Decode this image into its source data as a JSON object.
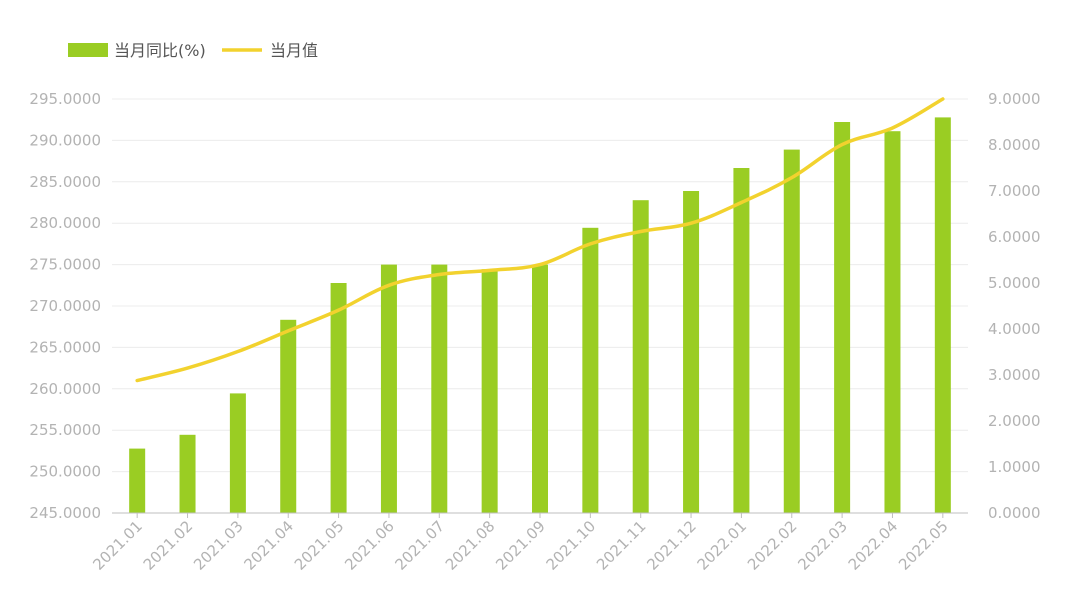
{
  "chart_data": {
    "type": "bar+line",
    "categories": [
      "2021.01",
      "2021.02",
      "2021.03",
      "2021.04",
      "2021.05",
      "2021.06",
      "2021.07",
      "2021.08",
      "2021.09",
      "2021.10",
      "2021.11",
      "2021.12",
      "2022.01",
      "2022.02",
      "2022.03",
      "2022.04",
      "2022.05"
    ],
    "series": [
      {
        "name": "当月同比(%)",
        "kind": "bar",
        "axis": "right",
        "color": "#9acd23",
        "values": [
          1.4,
          1.7,
          2.6,
          4.2,
          5.0,
          5.4,
          5.4,
          5.3,
          5.4,
          6.2,
          6.8,
          7.0,
          7.5,
          7.9,
          8.5,
          8.3,
          8.6
        ]
      },
      {
        "name": "当月值",
        "kind": "line",
        "axis": "left",
        "color": "#f2d22e",
        "values": [
          261.0,
          262.5,
          264.5,
          267.0,
          269.5,
          272.5,
          273.8,
          274.3,
          275.0,
          277.5,
          279.0,
          280.0,
          282.5,
          285.5,
          289.5,
          291.5,
          295.0
        ]
      }
    ],
    "y_left": {
      "ylim": [
        245,
        295
      ],
      "ticks": [
        "245.0000",
        "250.0000",
        "255.0000",
        "260.0000",
        "265.0000",
        "270.0000",
        "275.0000",
        "280.0000",
        "285.0000",
        "290.0000",
        "295.0000"
      ]
    },
    "y_right": {
      "ylim": [
        0,
        9
      ],
      "ticks": [
        "0.0000",
        "1.0000",
        "2.0000",
        "3.0000",
        "4.0000",
        "5.0000",
        "6.0000",
        "7.0000",
        "8.0000",
        "9.0000"
      ]
    },
    "legend_position": "top-left",
    "grid": true,
    "title": "",
    "xlabel": "",
    "ylabel": ""
  }
}
